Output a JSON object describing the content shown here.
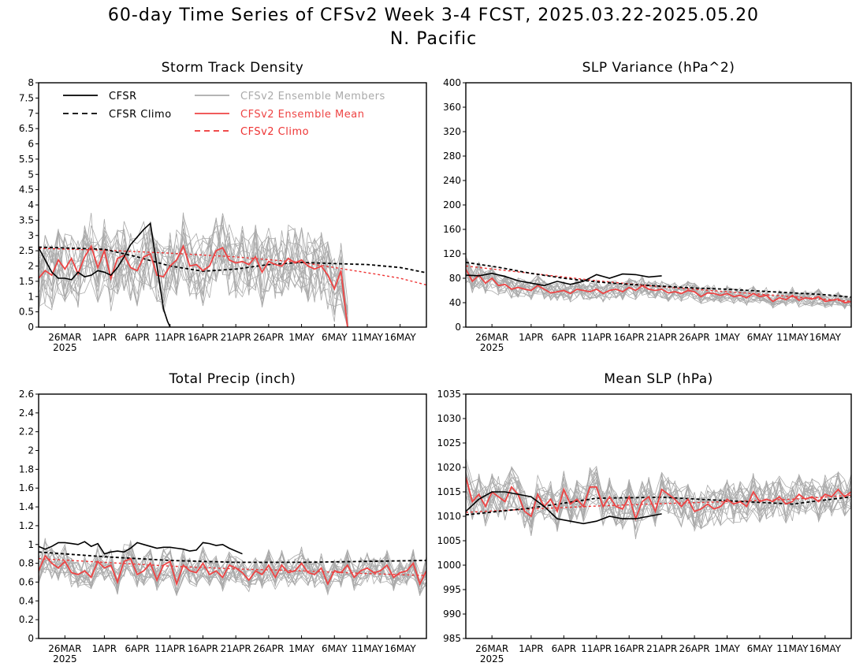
{
  "figure": {
    "title_line1": "60-day Time Series of CFSv2 Week 3-4 FCST, 2025.03.22-2025.05.20",
    "title_line2": "N. Pacific"
  },
  "legend": {
    "cfsr": "CFSR",
    "cfsr_climo": "CFSR Climo",
    "members": "CFSv2 Ensemble Members",
    "ens_mean": "CFSv2 Ensemble Mean",
    "cfsv2_climo": "CFSv2 Climo"
  },
  "colors": {
    "cfsr": "#000000",
    "cfsr_climo": "#000000",
    "members": "#aaaaaa",
    "ens_mean": "#ee4444",
    "cfsv2_climo": "#ee3333"
  },
  "chart_data": [
    {
      "type": "line",
      "title": "Storm Track Density",
      "x_range": [
        "2025-03-22",
        "2025-05-20"
      ],
      "x_ticks": [
        "26MAR",
        "1APR",
        "6APR",
        "11APR",
        "16APR",
        "21APR",
        "26APR",
        "1MAY",
        "6MAY",
        "11MAY",
        "16MAY"
      ],
      "x_year_label": "2025",
      "ylim": [
        0,
        8
      ],
      "y_ticks": [
        "0",
        "0.5",
        "1",
        "1.5",
        "2",
        "2.5",
        "3",
        "3.5",
        "4",
        "4.5",
        "5",
        "5.5",
        "6",
        "6.5",
        "7",
        "7.5",
        "8"
      ],
      "series": [
        {
          "name": "CFSR",
          "x": [
            0,
            1,
            2,
            3,
            4,
            5,
            6,
            7,
            8,
            9,
            10,
            11,
            12,
            13,
            14,
            15,
            16,
            17,
            18,
            19,
            19.6,
            20
          ],
          "values": [
            2.6,
            2.2,
            1.8,
            1.6,
            1.6,
            1.55,
            1.8,
            1.65,
            1.7,
            1.85,
            1.8,
            1.7,
            1.95,
            2.3,
            2.7,
            2.95,
            3.2,
            3.4,
            2.0,
            0.6,
            0.2,
            0
          ]
        },
        {
          "name": "CFSR Climo",
          "x": [
            0,
            10,
            15,
            20,
            25,
            30,
            35,
            40,
            45,
            50,
            55,
            59
          ],
          "values": [
            2.62,
            2.55,
            2.3,
            2.0,
            1.83,
            1.9,
            2.05,
            2.12,
            2.08,
            2.05,
            1.95,
            1.78
          ]
        },
        {
          "name": "CFSv2 Ensemble Mean",
          "x": [
            0,
            1,
            2,
            3,
            4,
            5,
            6,
            7,
            8,
            9,
            10,
            11,
            12,
            13,
            14,
            15,
            16,
            17,
            18,
            19,
            20,
            21,
            22,
            23,
            24,
            25,
            26,
            27,
            28,
            29,
            30,
            31,
            32,
            33,
            34,
            35,
            36,
            37,
            38,
            39,
            40,
            41,
            42,
            43,
            44,
            45,
            46,
            47
          ],
          "values": [
            1.6,
            1.85,
            1.7,
            2.2,
            1.9,
            2.25,
            1.75,
            2.3,
            2.65,
            1.95,
            2.5,
            1.6,
            2.25,
            2.35,
            1.95,
            1.85,
            2.3,
            2.4,
            1.7,
            1.65,
            2.0,
            2.2,
            2.65,
            2.0,
            2.05,
            1.85,
            2.0,
            2.5,
            2.6,
            2.2,
            2.1,
            2.15,
            2.05,
            2.3,
            1.8,
            2.15,
            2.05,
            2.0,
            2.25,
            2.1,
            2.2,
            2.0,
            1.9,
            2.0,
            1.7,
            1.25,
            1.85,
            0
          ]
        },
        {
          "name": "CFSv2 Climo",
          "x": [
            0,
            10,
            20,
            30,
            40,
            45,
            50,
            55,
            59
          ],
          "values": [
            2.58,
            2.52,
            2.42,
            2.3,
            2.12,
            1.95,
            1.78,
            1.6,
            1.38
          ]
        }
      ]
    },
    {
      "type": "line",
      "title": "SLP Variance (hPa^2)",
      "x_range": [
        "2025-03-22",
        "2025-05-20"
      ],
      "x_ticks": [
        "26MAR",
        "1APR",
        "6APR",
        "11APR",
        "16APR",
        "21APR",
        "26APR",
        "1MAY",
        "6MAY",
        "11MAY",
        "16MAY"
      ],
      "x_year_label": "2025",
      "ylim": [
        0,
        400
      ],
      "y_ticks": [
        "0",
        "40",
        "80",
        "120",
        "160",
        "200",
        "240",
        "280",
        "320",
        "360",
        "400"
      ],
      "series": [
        {
          "name": "CFSR",
          "x": [
            0,
            2,
            4,
            6,
            8,
            10,
            12,
            14,
            16,
            18,
            20,
            22,
            24,
            26,
            28,
            30
          ],
          "values": [
            85,
            84,
            88,
            83,
            76,
            72,
            68,
            75,
            70,
            75,
            86,
            80,
            87,
            86,
            82,
            84
          ]
        },
        {
          "name": "CFSR Climo",
          "x": [
            0,
            5,
            10,
            15,
            20,
            25,
            30,
            35,
            40,
            45,
            50,
            55,
            59
          ],
          "values": [
            106,
            98,
            88,
            80,
            74,
            70,
            67,
            64,
            62,
            59,
            56,
            53,
            49
          ]
        },
        {
          "name": "CFSv2 Ensemble Mean",
          "x": [
            0,
            1,
            2,
            3,
            4,
            5,
            6,
            7,
            8,
            9,
            10,
            11,
            12,
            13,
            14,
            15,
            16,
            17,
            18,
            19,
            20,
            21,
            22,
            23,
            24,
            25,
            26,
            27,
            28,
            29,
            30,
            31,
            32,
            33,
            34,
            35,
            36,
            37,
            38,
            39,
            40,
            41,
            42,
            43,
            44,
            45,
            46,
            47,
            48,
            49,
            50,
            51,
            52,
            53,
            54,
            55,
            56,
            57,
            58,
            59
          ],
          "values": [
            95,
            75,
            85,
            72,
            80,
            68,
            70,
            62,
            65,
            62,
            60,
            68,
            62,
            56,
            58,
            60,
            55,
            62,
            60,
            58,
            62,
            55,
            60,
            62,
            58,
            65,
            60,
            68,
            62,
            60,
            62,
            56,
            58,
            55,
            60,
            58,
            50,
            56,
            55,
            52,
            55,
            50,
            52,
            48,
            55,
            50,
            52,
            42,
            48,
            45,
            52,
            44,
            48,
            46,
            50,
            42,
            44,
            46,
            40,
            42
          ]
        },
        {
          "name": "CFSv2 Climo",
          "x": [
            0,
            10,
            20,
            30,
            40,
            50,
            59
          ],
          "values": [
            100,
            88,
            76,
            66,
            58,
            50,
            42
          ]
        }
      ]
    },
    {
      "type": "line",
      "title": "Total Precip (inch)",
      "x_range": [
        "2025-03-22",
        "2025-05-20"
      ],
      "x_ticks": [
        "26MAR",
        "1APR",
        "6APR",
        "11APR",
        "16APR",
        "21APR",
        "26APR",
        "1MAY",
        "6MAY",
        "11MAY",
        "16MAY"
      ],
      "x_year_label": "2025",
      "ylim": [
        0,
        2.6
      ],
      "y_ticks": [
        "0",
        "0.2",
        "0.4",
        "0.6",
        "0.8",
        "1",
        "1.2",
        "1.4",
        "1.6",
        "1.8",
        "2",
        "2.2",
        "2.4",
        "2.6"
      ],
      "series": [
        {
          "name": "CFSR",
          "x": [
            0,
            1,
            2,
            3,
            4,
            5,
            6,
            7,
            8,
            9,
            10,
            11,
            12,
            13,
            14,
            15,
            16,
            17,
            18,
            19,
            20,
            21,
            22,
            23,
            24,
            25,
            26,
            27,
            28,
            29,
            30,
            31
          ],
          "values": [
            0.98,
            0.95,
            0.98,
            1.02,
            1.02,
            1.01,
            1.0,
            1.03,
            0.98,
            1.01,
            0.9,
            0.92,
            0.93,
            0.92,
            0.96,
            1.02,
            1.0,
            0.98,
            0.96,
            0.97,
            0.97,
            0.96,
            0.95,
            0.93,
            0.94,
            1.02,
            1.01,
            0.99,
            1.0,
            0.96,
            0.93,
            0.9
          ]
        },
        {
          "name": "CFSR Climo",
          "x": [
            0,
            10,
            20,
            30,
            40,
            50,
            59
          ],
          "values": [
            0.92,
            0.87,
            0.83,
            0.81,
            0.81,
            0.82,
            0.83
          ]
        },
        {
          "name": "CFSv2 Ensemble Mean",
          "x": [
            0,
            1,
            2,
            3,
            4,
            5,
            6,
            7,
            8,
            9,
            10,
            11,
            12,
            13,
            14,
            15,
            16,
            17,
            18,
            19,
            20,
            21,
            22,
            23,
            24,
            25,
            26,
            27,
            28,
            29,
            30,
            31,
            32,
            33,
            34,
            35,
            36,
            37,
            38,
            39,
            40,
            41,
            42,
            43,
            44,
            45,
            46,
            47,
            48,
            49,
            50,
            51,
            52,
            53,
            54,
            55,
            56,
            57,
            58,
            59
          ],
          "values": [
            0.72,
            0.88,
            0.8,
            0.75,
            0.82,
            0.7,
            0.68,
            0.72,
            0.65,
            0.82,
            0.75,
            0.78,
            0.6,
            0.82,
            0.85,
            0.68,
            0.72,
            0.8,
            0.62,
            0.78,
            0.82,
            0.58,
            0.78,
            0.72,
            0.7,
            0.8,
            0.68,
            0.72,
            0.65,
            0.78,
            0.75,
            0.7,
            0.62,
            0.72,
            0.68,
            0.78,
            0.65,
            0.78,
            0.7,
            0.72,
            0.8,
            0.7,
            0.68,
            0.75,
            0.58,
            0.72,
            0.7,
            0.78,
            0.65,
            0.72,
            0.75,
            0.7,
            0.72,
            0.78,
            0.65,
            0.7,
            0.72,
            0.8,
            0.58,
            0.72
          ]
        },
        {
          "name": "CFSv2 Climo",
          "x": [
            0,
            10,
            20,
            30,
            40,
            50,
            59
          ],
          "values": [
            0.85,
            0.81,
            0.77,
            0.74,
            0.72,
            0.69,
            0.67
          ]
        }
      ]
    },
    {
      "type": "line",
      "title": "Mean SLP (hPa)",
      "x_range": [
        "2025-03-22",
        "2025-05-20"
      ],
      "x_ticks": [
        "26MAR",
        "1APR",
        "6APR",
        "11APR",
        "16APR",
        "21APR",
        "26APR",
        "1MAY",
        "6MAY",
        "11MAY",
        "16MAY"
      ],
      "x_year_label": "2025",
      "ylim": [
        985,
        1035
      ],
      "y_ticks": [
        "985",
        "990",
        "995",
        "1000",
        "1005",
        "1010",
        "1015",
        "1020",
        "1025",
        "1030",
        "1035"
      ],
      "series": [
        {
          "name": "CFSR",
          "x": [
            0,
            2,
            4,
            6,
            8,
            10,
            12,
            14,
            16,
            18,
            20,
            22,
            24,
            26,
            28,
            30
          ],
          "values": [
            1011,
            1013.5,
            1015,
            1015,
            1014.5,
            1014,
            1012,
            1009.5,
            1009,
            1008.5,
            1009,
            1010,
            1009.5,
            1009.5,
            1010,
            1010.5
          ]
        },
        {
          "name": "CFSR Climo",
          "x": [
            0,
            10,
            20,
            30,
            40,
            50,
            59
          ],
          "values": [
            1010.3,
            1011.7,
            1013.7,
            1013.9,
            1013.2,
            1012.5,
            1014
          ]
        },
        {
          "name": "CFSv2 Ensemble Mean",
          "x": [
            0,
            1,
            2,
            3,
            4,
            5,
            6,
            7,
            8,
            9,
            10,
            11,
            12,
            13,
            14,
            15,
            16,
            17,
            18,
            19,
            20,
            21,
            22,
            23,
            24,
            25,
            26,
            27,
            28,
            29,
            30,
            31,
            32,
            33,
            34,
            35,
            36,
            37,
            38,
            39,
            40,
            41,
            42,
            43,
            44,
            45,
            46,
            47,
            48,
            49,
            50,
            51,
            52,
            53,
            54,
            55,
            56,
            57,
            58,
            59
          ],
          "values": [
            1018,
            1013,
            1014.5,
            1012,
            1015,
            1014,
            1013,
            1016,
            1014.5,
            1011,
            1010,
            1014.5,
            1012,
            1013.5,
            1011,
            1015.5,
            1012.5,
            1013.5,
            1012,
            1016,
            1016,
            1012,
            1014,
            1012,
            1011.5,
            1014,
            1009.5,
            1013,
            1014,
            1011,
            1015.5,
            1014.5,
            1013.5,
            1012,
            1013.5,
            1011,
            1011.5,
            1012.5,
            1011.5,
            1012,
            1013.5,
            1012.5,
            1013,
            1012,
            1015,
            1013,
            1013.5,
            1013,
            1014,
            1012.5,
            1013,
            1014.5,
            1013.5,
            1014,
            1013,
            1014.5,
            1014,
            1015.5,
            1014,
            1015
          ]
        },
        {
          "name": "CFSv2 Climo",
          "x": [
            0,
            10,
            20,
            30,
            40,
            50,
            59
          ],
          "values": [
            1010.8,
            1011.5,
            1012.1,
            1012.6,
            1013.0,
            1013.5,
            1014.3
          ]
        }
      ]
    }
  ]
}
